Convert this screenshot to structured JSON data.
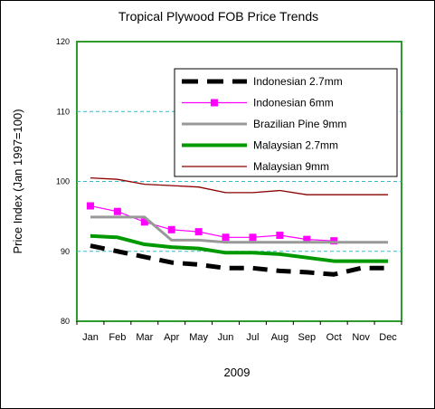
{
  "chart_data": {
    "type": "line",
    "title": "Tropical Plywood FOB Price Trends",
    "xlabel": "2009",
    "ylabel": "Price Index (Jan 1997=100)",
    "ylim": [
      80,
      120
    ],
    "yticks": [
      80,
      90,
      100,
      110,
      120
    ],
    "grid": "horizontal dashed at 90, 100, 110",
    "legend_position": "top-right",
    "categories": [
      "Jan",
      "Feb",
      "Mar",
      "Apr",
      "May",
      "Jun",
      "Jul",
      "Aug",
      "Sep",
      "Oct",
      "Nov",
      "Dec"
    ],
    "series": [
      {
        "name": "Indonesian 2.7mm",
        "color": "#000000",
        "style": "dashed-thick",
        "values": [
          90.8,
          90.0,
          89.2,
          88.4,
          88.1,
          87.6,
          87.6,
          87.2,
          87.0,
          86.7,
          87.6,
          87.6
        ]
      },
      {
        "name": "Indonesian 6mm",
        "color": "#ff00ff",
        "style": "line-square-markers",
        "values": [
          96.5,
          95.7,
          94.2,
          93.1,
          92.8,
          92.0,
          92.0,
          92.3,
          91.7,
          91.5,
          null,
          null
        ]
      },
      {
        "name": "Brazilian Pine 9mm",
        "color": "#999999",
        "style": "solid-medium",
        "values": [
          94.9,
          94.9,
          94.9,
          91.6,
          91.6,
          91.3,
          91.3,
          91.3,
          91.3,
          91.3,
          91.3,
          91.3
        ]
      },
      {
        "name": "Malaysian 2.7mm",
        "color": "#009900",
        "style": "solid-thick",
        "values": [
          92.2,
          92.0,
          91.0,
          90.6,
          90.4,
          89.8,
          89.8,
          89.6,
          89.1,
          88.6,
          88.6,
          88.6
        ]
      },
      {
        "name": "Malaysian 9mm",
        "color": "#8b0000",
        "style": "solid-thin",
        "values": [
          100.5,
          100.3,
          99.6,
          99.4,
          99.2,
          98.4,
          98.4,
          98.7,
          98.1,
          98.1,
          98.1,
          98.1
        ]
      }
    ]
  }
}
